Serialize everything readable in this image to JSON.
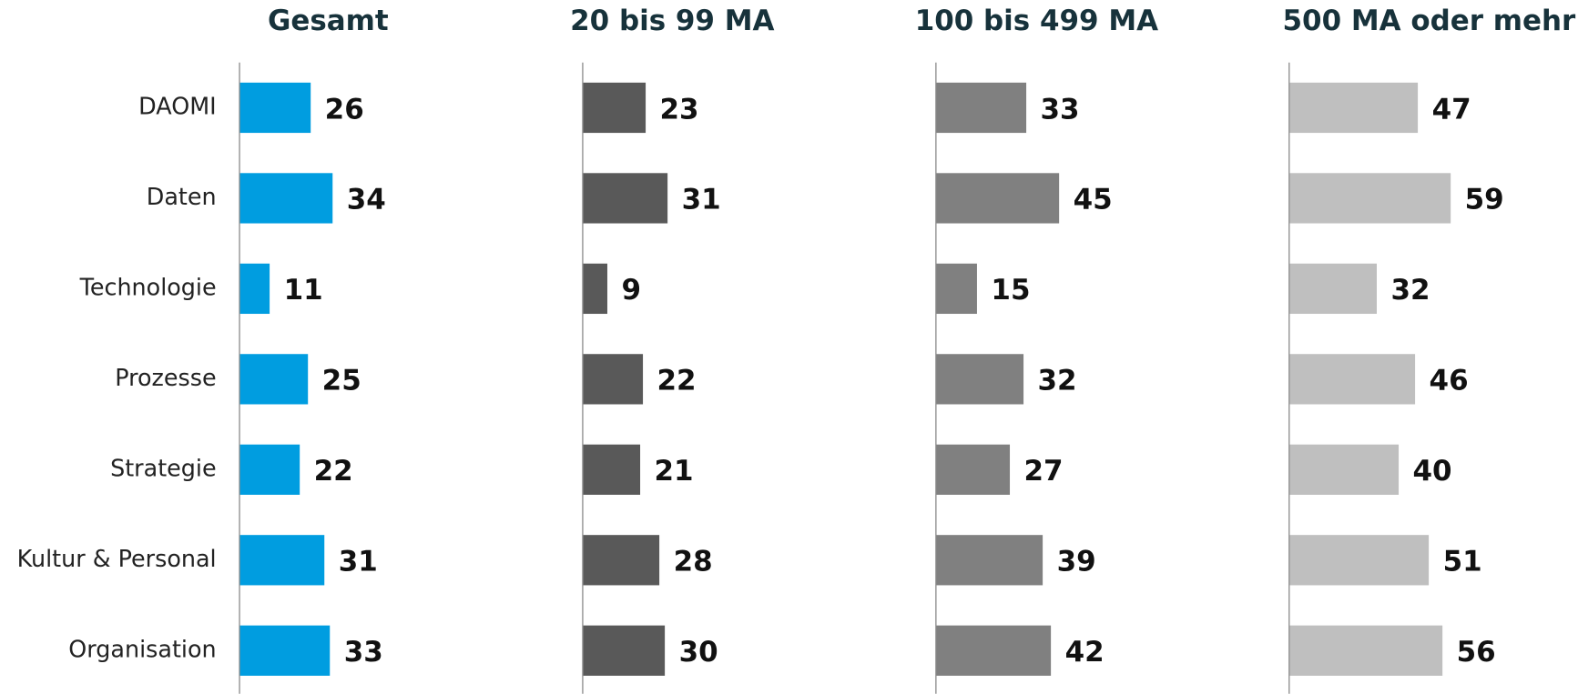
{
  "chart_data": [
    {
      "type": "bar",
      "orientation": "horizontal",
      "title": "Gesamt",
      "categories": [
        "DAOMI",
        "Daten",
        "Technologie",
        "Prozesse",
        "Strategie",
        "Kultur & Personal",
        "Organisation"
      ],
      "values": [
        26,
        34,
        11,
        25,
        22,
        31,
        33
      ],
      "color": "#009de0"
    },
    {
      "type": "bar",
      "orientation": "horizontal",
      "title": "20 bis 99 MA",
      "values": [
        23,
        31,
        9,
        22,
        21,
        28,
        30
      ],
      "color": "#595959"
    },
    {
      "type": "bar",
      "orientation": "horizontal",
      "title": "100 bis 499 MA",
      "values": [
        33,
        45,
        15,
        32,
        27,
        39,
        42
      ],
      "color": "#808080"
    },
    {
      "type": "bar",
      "orientation": "horizontal",
      "title": "500 MA oder mehr",
      "values": [
        47,
        59,
        32,
        46,
        40,
        51,
        56
      ],
      "color": "#bfbfbf"
    }
  ]
}
